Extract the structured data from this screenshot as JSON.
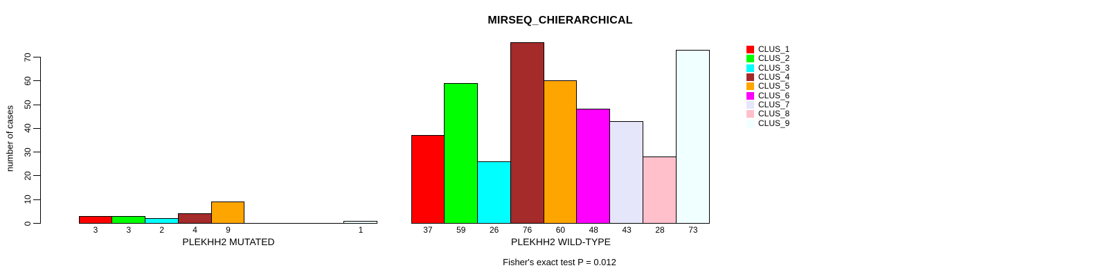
{
  "title": "MIRSEQ_CHIERARCHICAL",
  "footer": "Fisher's exact test P = 0.012",
  "y_axis": {
    "label": "number of cases",
    "ticks": [
      0,
      10,
      20,
      30,
      40,
      50,
      60,
      70
    ]
  },
  "chart_data": {
    "type": "bar",
    "title": "MIRSEQ_CHIERARCHICAL",
    "xlabel": "",
    "ylabel": "number of cases",
    "ylim": [
      0,
      70
    ],
    "yticks": [
      0,
      10,
      20,
      30,
      40,
      50,
      60,
      70
    ],
    "grid": false,
    "legend_position": "right",
    "annotation": "Fisher's exact test P = 0.012",
    "categories": [
      "CLUS_1",
      "CLUS_2",
      "CLUS_3",
      "CLUS_4",
      "CLUS_5",
      "CLUS_6",
      "CLUS_7",
      "CLUS_8",
      "CLUS_9"
    ],
    "colors": [
      "#FF0000",
      "#00FF00",
      "#00FFFF",
      "#A52A2A",
      "#FFA500",
      "#FF00FF",
      "#E6E6FA",
      "#FFC0CB",
      "#F0FFFF"
    ],
    "bar_border_color": "#000000",
    "series": [
      {
        "name": "PLEKHH2 MUTATED",
        "values": [
          3,
          3,
          2,
          4,
          9,
          0,
          0,
          0,
          1
        ]
      },
      {
        "name": "PLEKHH2 WILD-TYPE",
        "values": [
          37,
          59,
          26,
          76,
          60,
          48,
          43,
          28,
          73
        ]
      }
    ]
  }
}
